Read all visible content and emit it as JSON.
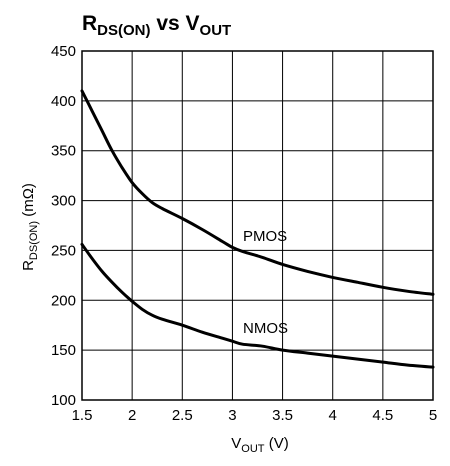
{
  "chart_data": {
    "type": "line",
    "title": {
      "main": "R",
      "sub1": "DS(ON)",
      "mid": " vs V",
      "sub2": "OUT"
    },
    "xlabel": {
      "main": "V",
      "sub": "OUT",
      "rest": " (V)"
    },
    "ylabel": {
      "main": "R",
      "sub": "DS(ON)",
      "rest": " (mΩ)"
    },
    "xlim": [
      1.5,
      5
    ],
    "ylim": [
      100,
      450
    ],
    "xticks": [
      "1.5",
      "2",
      "2.5",
      "3",
      "3.5",
      "4",
      "4.5",
      "5"
    ],
    "yticks": [
      "100",
      "150",
      "200",
      "250",
      "300",
      "350",
      "400",
      "450"
    ],
    "grid": true,
    "series": [
      {
        "name": "PMOS",
        "x": [
          1.5,
          1.6,
          1.7,
          1.8,
          1.9,
          2.0,
          2.1,
          2.2,
          2.3,
          2.5,
          2.7,
          2.9,
          3.0,
          3.1,
          3.3,
          3.5,
          3.75,
          4.0,
          4.25,
          4.5,
          4.75,
          5.0
        ],
        "y": [
          410,
          390,
          370,
          350,
          333,
          318,
          307,
          298,
          292,
          282,
          271,
          259,
          253,
          249,
          243,
          236,
          229,
          223,
          218,
          213,
          209,
          206
        ]
      },
      {
        "name": "NMOS",
        "x": [
          1.5,
          1.6,
          1.7,
          1.8,
          1.9,
          2.0,
          2.1,
          2.2,
          2.3,
          2.5,
          2.7,
          2.9,
          3.0,
          3.1,
          3.3,
          3.5,
          3.75,
          4.0,
          4.25,
          4.5,
          4.75,
          5.0
        ],
        "y": [
          256,
          242,
          229,
          218,
          208,
          199,
          191,
          185,
          181,
          175,
          168,
          162,
          159,
          156,
          154,
          150,
          147,
          144,
          141,
          138,
          135,
          133
        ]
      }
    ]
  }
}
